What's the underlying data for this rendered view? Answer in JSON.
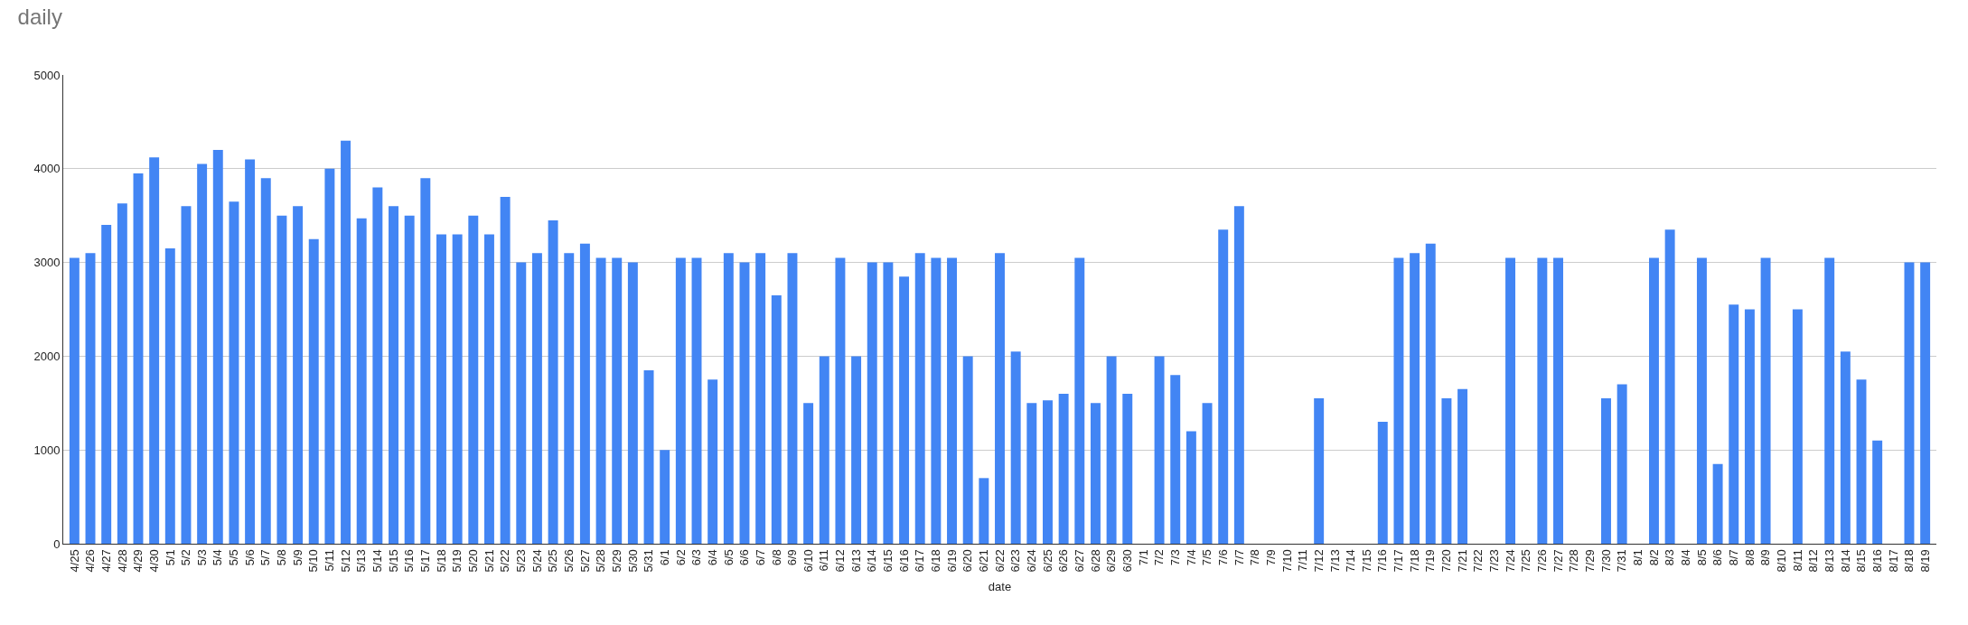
{
  "chart_data": {
    "type": "bar",
    "title": "daily",
    "xlabel": "date",
    "categories": [
      "4/25",
      "4/26",
      "4/27",
      "4/28",
      "4/29",
      "4/30",
      "5/1",
      "5/2",
      "5/3",
      "5/4",
      "5/5",
      "5/6",
      "5/7",
      "5/8",
      "5/9",
      "5/10",
      "5/11",
      "5/12",
      "5/13",
      "5/14",
      "5/15",
      "5/16",
      "5/17",
      "5/18",
      "5/19",
      "5/20",
      "5/21",
      "5/22",
      "5/23",
      "5/24",
      "5/25",
      "5/26",
      "5/27",
      "5/28",
      "5/29",
      "5/30",
      "5/31",
      "6/1",
      "6/2",
      "6/3",
      "6/4",
      "6/5",
      "6/6",
      "6/7",
      "6/8",
      "6/9",
      "6/10",
      "6/11",
      "6/12",
      "6/13",
      "6/14",
      "6/15",
      "6/16",
      "6/17",
      "6/18",
      "6/19",
      "6/20",
      "6/21",
      "6/22",
      "6/23",
      "6/24",
      "6/25",
      "6/26",
      "6/27",
      "6/28",
      "6/29",
      "6/30",
      "7/1",
      "7/2",
      "7/3",
      "7/4",
      "7/5",
      "7/6",
      "7/7",
      "7/8",
      "7/9",
      "7/10",
      "7/11",
      "7/12",
      "7/13",
      "7/14",
      "7/15",
      "7/16",
      "7/17",
      "7/18",
      "7/19",
      "7/20",
      "7/21",
      "7/22",
      "7/23",
      "7/24",
      "7/25",
      "7/26",
      "7/27",
      "7/28",
      "7/29",
      "7/30",
      "7/31",
      "8/1",
      "8/2",
      "8/3",
      "8/4",
      "8/5",
      "8/6",
      "8/7",
      "8/8",
      "8/9",
      "8/10",
      "8/11",
      "8/12",
      "8/13",
      "8/14",
      "8/15",
      "8/16",
      "8/17",
      "8/18",
      "8/19"
    ],
    "values": [
      3050,
      3100,
      3400,
      3630,
      3950,
      4120,
      3150,
      3600,
      4050,
      4200,
      3650,
      4100,
      3900,
      3500,
      3600,
      3250,
      4000,
      4300,
      3470,
      3800,
      3600,
      3500,
      3900,
      3300,
      3300,
      3500,
      3300,
      3700,
      3000,
      3100,
      3450,
      3100,
      3200,
      3050,
      3050,
      3000,
      1850,
      1000,
      3050,
      3050,
      1750,
      3100,
      3000,
      3100,
      2650,
      3100,
      1500,
      2000,
      3050,
      2000,
      3000,
      3000,
      2850,
      3100,
      3050,
      3050,
      2000,
      700,
      3100,
      2050,
      1500,
      1530,
      1600,
      3050,
      1500,
      2000,
      1600,
      null,
      2000,
      1800,
      1200,
      1500,
      3350,
      3600,
      null,
      null,
      null,
      null,
      1550,
      null,
      null,
      null,
      1300,
      3050,
      3100,
      3200,
      1550,
      1650,
      null,
      null,
      3050,
      null,
      3050,
      3050,
      null,
      null,
      1550,
      1700,
      null,
      3050,
      3350,
      null,
      3050,
      850,
      2550,
      2500,
      3050,
      null,
      2500,
      null,
      3050,
      2050,
      1750,
      1100,
      null,
      3000,
      3000
    ],
    "color": "#4285f4",
    "ylim": [
      0,
      5000
    ],
    "yticks": [
      0,
      1000,
      2000,
      3000,
      4000,
      5000
    ],
    "grid": "y"
  }
}
